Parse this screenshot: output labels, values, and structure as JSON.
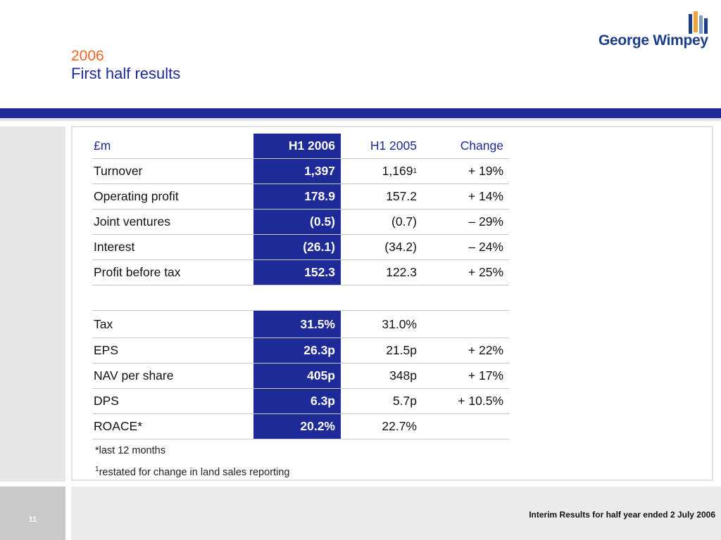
{
  "header": {
    "year": "2006",
    "title": "First half results",
    "logo_text": "George Wimpey"
  },
  "colors": {
    "brand_blue": "#1f2a99",
    "accent_orange": "#f26522",
    "logo_blue": "#1b3e8a"
  },
  "table": {
    "headers": {
      "label": "£m",
      "h1_2006": "H1 2006",
      "h1_2005": "H1 2005",
      "change": "Change"
    },
    "rows": [
      {
        "label": "Turnover",
        "h1_2006": "1,397",
        "h1_2005": "1,169",
        "h1_2005_sup": "1",
        "change": "+ 19%"
      },
      {
        "label": "Operating profit",
        "h1_2006": "178.9",
        "h1_2005": "157.2",
        "change": "+ 14%"
      },
      {
        "label": "Joint ventures",
        "h1_2006": "(0.5)",
        "h1_2005": "(0.7)",
        "change": "– 29%"
      },
      {
        "label": "Interest",
        "h1_2006": "(26.1)",
        "h1_2005": "(34.2)",
        "change": "– 24%"
      },
      {
        "label": "Profit before tax",
        "h1_2006": "152.3",
        "h1_2005": "122.3",
        "change": "+ 25%"
      },
      {
        "label": "Tax",
        "h1_2006": "31.5%",
        "h1_2005": "31.0%",
        "change": ""
      },
      {
        "label": "EPS",
        "h1_2006": "26.3p",
        "h1_2005": "21.5p",
        "change": "+ 22%"
      },
      {
        "label": "NAV per share",
        "h1_2006": "405p",
        "h1_2005": "348p",
        "change": "+ 17%"
      },
      {
        "label": "DPS",
        "h1_2006": "6.3p",
        "h1_2005": "5.7p",
        "change": "+ 10.5%"
      },
      {
        "label": "ROACE*",
        "h1_2006": "20.2%",
        "h1_2005": "22.7%",
        "change": ""
      }
    ]
  },
  "notes": {
    "asterisk": "*last 12 months",
    "restated_sup": "1",
    "restated": "restated for change in land sales reporting"
  },
  "footer": {
    "page_number": "11",
    "caption": "Interim Results for half year ended 2 July 2006"
  }
}
